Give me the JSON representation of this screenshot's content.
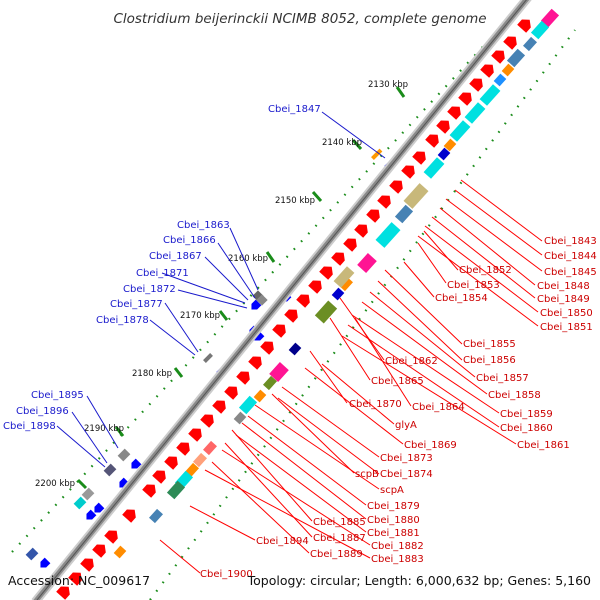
{
  "title": "Clostridium beijerinckii NCIMB 8052, complete genome",
  "footer": {
    "accession": "Accession: NC_009617",
    "summary": "Topology: circular; Length: 6,000,632 bp; Genes: 5,160"
  },
  "kbp_ticks": [
    "2130 kbp",
    "2140 kbp",
    "2150 kbp",
    "2160 kbp",
    "2170 kbp",
    "2180 kbp",
    "2190 kbp",
    "2200 kbp"
  ],
  "labels_blue": [
    "Cbei_1847",
    "Cbei_1863",
    "Cbei_1866",
    "Cbei_1867",
    "Cbei_1871",
    "Cbei_1872",
    "Cbei_1877",
    "Cbei_1878",
    "Cbei_1895",
    "Cbei_1896",
    "Cbei_1898"
  ],
  "labels_red": [
    "Cbei_1843",
    "Cbei_1844",
    "Cbei_1845",
    "Cbei_1852",
    "Cbei_1848",
    "Cbei_1853",
    "Cbei_1849",
    "Cbei_1854",
    "Cbei_1850",
    "Cbei_1851",
    "Cbei_1855",
    "Cbei_1856",
    "Cbei_1862",
    "Cbei_1857",
    "Cbei_1865",
    "Cbei_1858",
    "Cbei_1870",
    "Cbei_1864",
    "Cbei_1859",
    "glyA",
    "Cbei_1860",
    "Cbei_1869",
    "Cbei_1861",
    "Cbei_1873",
    "scpB",
    "Cbei_1874",
    "scpA",
    "Cbei_1879",
    "Cbei_1880",
    "Cbei_1885",
    "Cbei_1881",
    "Cbei_1887",
    "Cbei_1882",
    "Cbei_1894",
    "Cbei_1889",
    "Cbei_1883",
    "Cbei_1900"
  ],
  "colors": {
    "backbone": "#8a8a8a",
    "cds_forward": "#ff0000",
    "cds_reverse": "#0000ff",
    "tick_green": "#1a8c1a",
    "label_blue": "#1a1acc",
    "label_red": "#cc0000"
  }
}
